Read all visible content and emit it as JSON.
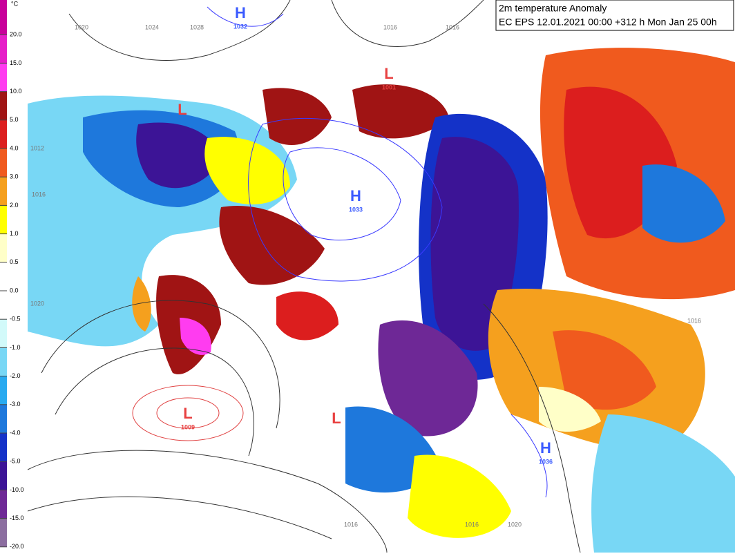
{
  "title": "2m temperature Anomaly",
  "subtitle": "EC EPS 12.01.2021 00:00 +312 h Mon Jan 25 00h",
  "colorbar": {
    "unit": "°C",
    "ticks": [
      {
        "value": 20,
        "label": "20.0"
      },
      {
        "value": 15,
        "label": "15.0"
      },
      {
        "value": 10,
        "label": "10.0"
      },
      {
        "value": 5,
        "label": "5.0"
      },
      {
        "value": 4,
        "label": "4.0"
      },
      {
        "value": 3,
        "label": "3.0"
      },
      {
        "value": 2,
        "label": "2.0"
      },
      {
        "value": 1,
        "label": "1.0"
      },
      {
        "value": 0.5,
        "label": "0.5"
      },
      {
        "value": 0,
        "label": "0.0"
      },
      {
        "value": -0.5,
        "label": "-0.5"
      },
      {
        "value": -1,
        "label": "-1.0"
      },
      {
        "value": -2,
        "label": "-2.0"
      },
      {
        "value": -3,
        "label": "-3.0"
      },
      {
        "value": -4,
        "label": "-4.0"
      },
      {
        "value": -5,
        "label": "-5.0"
      },
      {
        "value": -10,
        "label": "-10.0"
      },
      {
        "value": -15,
        "label": "-15.0"
      },
      {
        "value": -20,
        "label": "-20.0"
      }
    ],
    "colors": [
      "#c8009a",
      "#e61ec8",
      "#ff3cf0",
      "#a01414",
      "#dc1e1e",
      "#f05a1e",
      "#f5a01e",
      "#ffff00",
      "#ffffc8",
      "#ffffff",
      "#ffffff",
      "#d2fafa",
      "#78d7f5",
      "#28aaf0",
      "#1e78dc",
      "#1432c8",
      "#3c1496",
      "#6e2896",
      "#8c6ea0"
    ]
  },
  "pressure_centers": [
    {
      "kind": "H",
      "value": "1032"
    },
    {
      "kind": "L",
      "value": "1001"
    },
    {
      "kind": "L",
      "value": ""
    },
    {
      "kind": "H",
      "value": "1033"
    },
    {
      "kind": "L",
      "value": "1009"
    },
    {
      "kind": "L",
      "value": ""
    },
    {
      "kind": "H",
      "value": "1036"
    }
  ],
  "isobar_labels": [
    "1020",
    "1024",
    "1028",
    "1016",
    "1016",
    "1012",
    "1016",
    "1020",
    "1016",
    "1016",
    "1020",
    "1016"
  ]
}
